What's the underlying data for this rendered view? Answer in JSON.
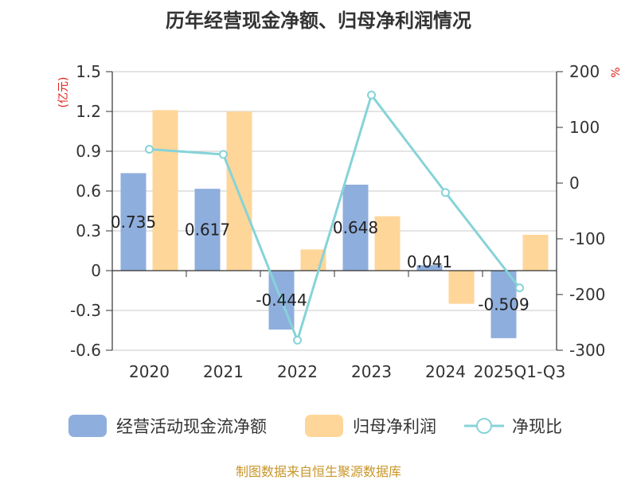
{
  "title": "历年经营现金净额、归母净利润情况",
  "source": "制图数据来自恒生聚源数据库",
  "colors": {
    "bar1": "#8eaedd",
    "bar2": "#ffd699",
    "line": "#86d3d8",
    "grid": "#c8c8c8",
    "axis": "#333333",
    "unit": "#e0201c",
    "source": "#c8962a"
  },
  "chart_data": {
    "type": "bar",
    "categories": [
      "2020",
      "2021",
      "2022",
      "2023",
      "2024",
      "2025Q1-Q3"
    ],
    "y_left": {
      "unit": "(亿元)",
      "ticks": [
        1.5,
        1.2,
        0.9,
        0.6,
        0.3,
        0,
        -0.3,
        -0.6
      ],
      "range": [
        -0.6,
        1.5
      ]
    },
    "y_right": {
      "unit": "%",
      "ticks": [
        200,
        100,
        0,
        -100,
        -200,
        -300
      ],
      "range": [
        -300,
        200
      ]
    },
    "series": [
      {
        "name": "经营活动现金流净额",
        "kind": "bar",
        "values": [
          0.735,
          0.617,
          -0.444,
          0.648,
          0.041,
          -0.509
        ],
        "labels": [
          "0.735",
          "0.617",
          "-0.444",
          "0.648",
          "0.041",
          "-0.509"
        ]
      },
      {
        "name": "归母净利润",
        "kind": "bar",
        "values": [
          1.21,
          1.2,
          0.16,
          0.41,
          -0.25,
          0.27
        ]
      },
      {
        "name": "净现比",
        "kind": "line",
        "axis": "right",
        "values": [
          60.7,
          51.4,
          -282,
          158,
          -17,
          -188
        ]
      }
    ],
    "legend_position": "bottom",
    "grid": true
  }
}
